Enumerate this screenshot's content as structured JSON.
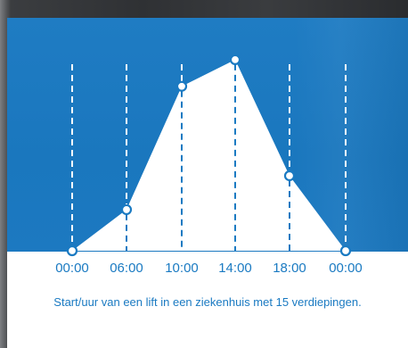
{
  "colors": {
    "accent": "#1a7ac2",
    "panel": "#1f7cc3",
    "area": "#ffffff"
  },
  "caption": "Start/uur van een lift in een ziekenhuis met 15 verdiepingen.",
  "chart_data": {
    "type": "area",
    "title": "",
    "xlabel": "",
    "ylabel": "",
    "categories": [
      "00:00",
      "06:00",
      "10:00",
      "14:00",
      "18:00",
      "00:00"
    ],
    "values": [
      0,
      17,
      68,
      79,
      31,
      0
    ],
    "ylim": [
      0,
      100
    ],
    "grid": "dashed vertical lines at each category",
    "legend": "none"
  }
}
